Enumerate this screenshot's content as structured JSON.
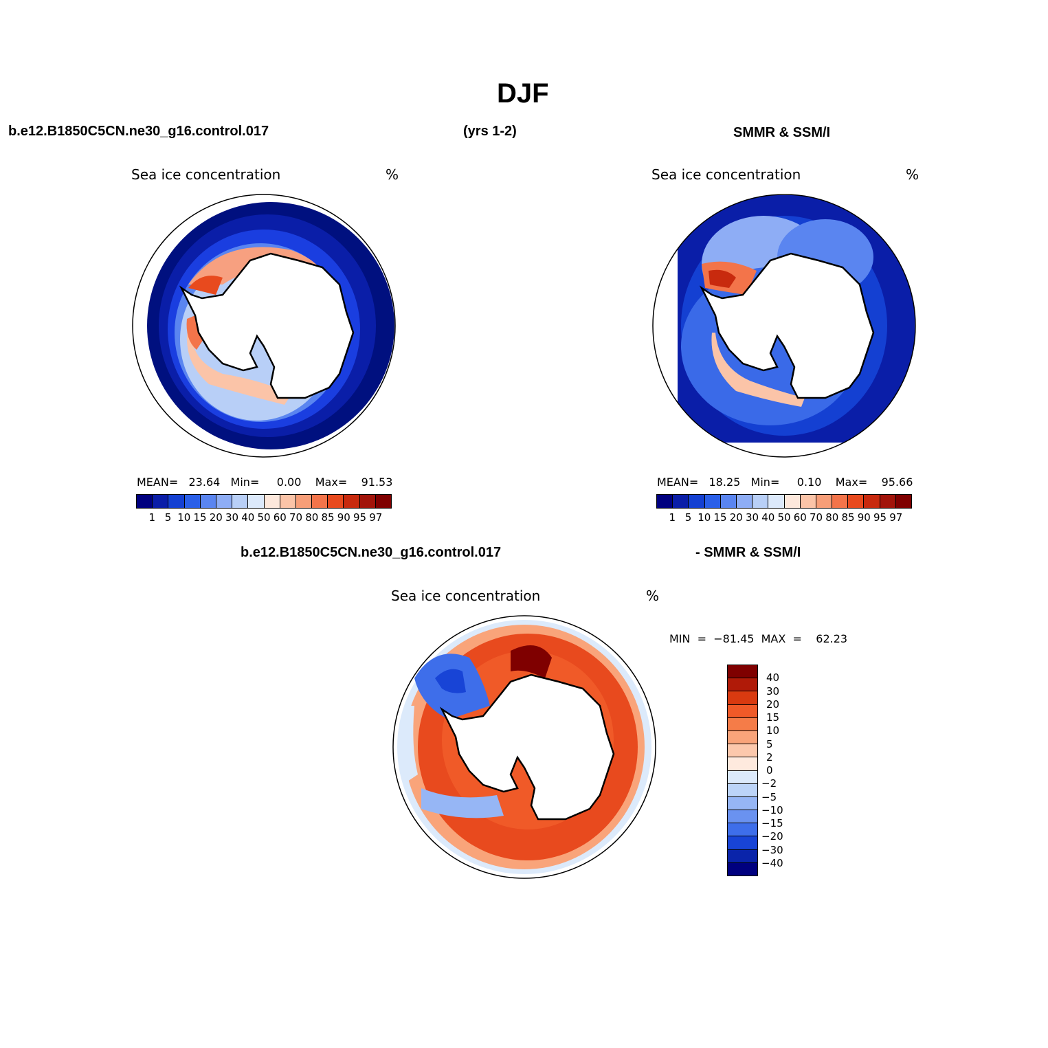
{
  "title": "DJF",
  "headers": {
    "left": "b.e12.B1850C5CN.ne30_g16.control.017",
    "center": "(yrs 1-2)",
    "right": "SMMR & SSM/I",
    "diff_left": "b.e12.B1850C5CN.ne30_g16.control.017",
    "diff_right": "- SMMR & SSM/I"
  },
  "panels": [
    {
      "label": "Sea ice concentration",
      "units": "%",
      "stats": "MEAN=   23.64   Min=     0.00    Max=    91.53"
    },
    {
      "label": "Sea ice concentration",
      "units": "%",
      "stats": "MEAN=   18.25   Min=     0.10    Max=    95.66"
    },
    {
      "label": "Sea ice concentration",
      "units": "%",
      "stats": "MIN  =  −81.45  MAX  =    62.23"
    }
  ],
  "colorbar_abs": {
    "ticks": [
      "1",
      "5",
      "10",
      "15",
      "20",
      "30",
      "40",
      "50",
      "60",
      "70",
      "80",
      "85",
      "90",
      "95",
      "97"
    ],
    "colors": [
      "#00007f",
      "#0a1ea8",
      "#1440d2",
      "#2a5fe8",
      "#5a85f0",
      "#8eadf5",
      "#b8cff7",
      "#dce9fb",
      "#fde8dc",
      "#fbc4a8",
      "#f79e78",
      "#f3744a",
      "#e84a1e",
      "#c82a0e",
      "#a2140a",
      "#7f0000"
    ]
  },
  "colorbar_diff": {
    "ticks": [
      "40",
      "30",
      "20",
      "15",
      "10",
      "5",
      "2",
      "0",
      "−2",
      "−5",
      "−10",
      "−15",
      "−20",
      "−30",
      "−40"
    ],
    "colors": [
      "#7f0000",
      "#b01a08",
      "#d93a10",
      "#f05a28",
      "#f57c48",
      "#f9a47a",
      "#fcc8ac",
      "#feeade",
      "#dceafb",
      "#bcd4f8",
      "#96b6f5",
      "#6a92f0",
      "#3e6eea",
      "#1844d6",
      "#0a24aa",
      "#00007f"
    ]
  },
  "chart_data": [
    {
      "type": "heatmap",
      "title": "b.e12.B1850C5CN.ne30_g16.control.017",
      "label": "Sea ice concentration",
      "units": "%",
      "mean": 23.64,
      "min": 0.0,
      "max": 91.53,
      "levels": [
        1,
        5,
        10,
        15,
        20,
        30,
        40,
        50,
        60,
        70,
        80,
        85,
        90,
        95,
        97
      ]
    },
    {
      "type": "heatmap",
      "title": "SMMR & SSM/I",
      "label": "Sea ice concentration",
      "units": "%",
      "mean": 18.25,
      "min": 0.1,
      "max": 95.66,
      "levels": [
        1,
        5,
        10,
        15,
        20,
        30,
        40,
        50,
        60,
        70,
        80,
        85,
        90,
        95,
        97
      ]
    },
    {
      "type": "heatmap",
      "title": "b.e12.B1850C5CN.ne30_g16.control.017 - SMMR & SSM/I",
      "label": "Sea ice concentration",
      "units": "%",
      "min": -81.45,
      "max": 62.23,
      "levels": [
        -40,
        -30,
        -20,
        -15,
        -10,
        -5,
        -2,
        0,
        2,
        5,
        10,
        15,
        20,
        30,
        40
      ]
    }
  ]
}
